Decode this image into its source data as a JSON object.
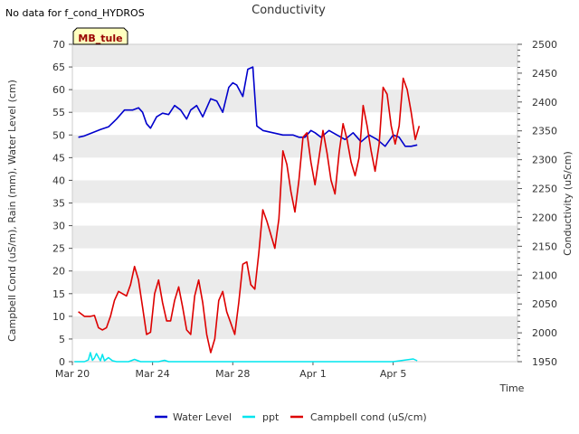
{
  "chart_data": {
    "type": "line",
    "title": "Conductivity",
    "top_note": "No data for f_cond_HYDROS",
    "badge": "MB_tule",
    "xlabel": "Time",
    "ylabel_left": "Campbell Cond (uS/m), Rain (mm), Water Level (cm)",
    "ylabel_right": "Conductivity (uS/cm)",
    "x_range_days": [
      0,
      22.2
    ],
    "x_ticks": [
      {
        "day": 0,
        "label": "Mar 20"
      },
      {
        "day": 4,
        "label": "Mar 24"
      },
      {
        "day": 8,
        "label": "Mar 28"
      },
      {
        "day": 12,
        "label": "Apr 1"
      },
      {
        "day": 16,
        "label": "Apr 5"
      }
    ],
    "ylim_left": [
      0,
      70
    ],
    "y_ticks_left": [
      "0",
      "5",
      "10",
      "15",
      "20",
      "25",
      "30",
      "35",
      "40",
      "45",
      "50",
      "55",
      "60",
      "65",
      "70"
    ],
    "ylim_right": [
      1950,
      2500
    ],
    "y_ticks_right": [
      "1950",
      "2000",
      "2050",
      "2100",
      "2150",
      "2200",
      "2250",
      "2300",
      "2350",
      "2400",
      "2450",
      "2500"
    ],
    "legend_placement": "bottom-center",
    "colors": {
      "water_level": "#0000cc",
      "ppt": "#00e5ee",
      "campbell": "#dd0000",
      "band": "#ebebeb"
    },
    "series": [
      {
        "name": "Water Level",
        "key": "water_level",
        "axis": "left",
        "x": [
          0.3,
          0.6,
          1.0,
          1.4,
          1.8,
          2.2,
          2.6,
          3.0,
          3.3,
          3.5,
          3.7,
          3.9,
          4.2,
          4.5,
          4.8,
          5.1,
          5.4,
          5.7,
          5.9,
          6.2,
          6.5,
          6.9,
          7.2,
          7.5,
          7.8,
          8.0,
          8.2,
          8.5,
          8.75,
          9.0,
          9.2,
          9.35,
          9.45,
          9.5,
          10.0,
          10.5,
          11.0,
          11.3,
          11.6,
          11.9,
          12.1,
          12.4,
          12.8,
          13.2,
          13.6,
          14.0,
          14.4,
          14.8,
          15.2,
          15.6,
          16.0,
          16.3,
          16.6,
          16.9,
          17.2
        ],
        "values": [
          49.5,
          49.8,
          50.5,
          51.2,
          51.8,
          53.5,
          55.5,
          55.5,
          56.0,
          55.0,
          52.5,
          51.5,
          54.0,
          54.8,
          54.5,
          56.5,
          55.5,
          53.5,
          55.5,
          56.5,
          54.0,
          58.0,
          57.5,
          55.0,
          60.5,
          61.5,
          61.0,
          58.5,
          64.5,
          65.0,
          52.0,
          51.5,
          51.2,
          51.0,
          50.5,
          50.0,
          50.0,
          49.5,
          49.5,
          51.0,
          50.5,
          49.5,
          51.0,
          50.0,
          49.0,
          50.5,
          48.5,
          50.0,
          49.0,
          47.5,
          50.0,
          49.5,
          47.5,
          47.5,
          47.8
        ]
      },
      {
        "name": "ppt",
        "key": "ppt",
        "axis": "left",
        "x": [
          0.1,
          0.6,
          0.8,
          0.9,
          1.0,
          1.1,
          1.2,
          1.4,
          1.5,
          1.6,
          1.8,
          2.0,
          2.2,
          2.5,
          2.8,
          3.1,
          3.4,
          3.7,
          4.3,
          4.6,
          4.8,
          5.2,
          6.0,
          8.0,
          10.0,
          12.0,
          14.0,
          16.0,
          17.0,
          17.1,
          17.2
        ],
        "values": [
          0,
          0,
          0.4,
          2.0,
          0.3,
          0.8,
          1.8,
          0.2,
          1.6,
          0.2,
          0.9,
          0.2,
          0,
          0,
          0,
          0.5,
          0,
          0,
          0,
          0.3,
          0,
          0,
          0,
          0,
          0,
          0,
          0,
          0,
          0.6,
          0.4,
          0.2
        ]
      },
      {
        "name": "Campbell cond (uS/cm)",
        "key": "campbell",
        "axis": "left",
        "x": [
          0.3,
          0.6,
          0.9,
          1.1,
          1.3,
          1.5,
          1.7,
          1.9,
          2.1,
          2.3,
          2.5,
          2.7,
          2.9,
          3.1,
          3.3,
          3.5,
          3.7,
          3.9,
          4.1,
          4.3,
          4.5,
          4.7,
          4.9,
          5.1,
          5.3,
          5.5,
          5.7,
          5.9,
          6.1,
          6.3,
          6.5,
          6.7,
          6.9,
          7.1,
          7.3,
          7.5,
          7.7,
          7.9,
          8.1,
          8.3,
          8.5,
          8.7,
          8.9,
          9.1,
          9.3,
          9.5,
          9.7,
          9.9,
          10.1,
          10.3,
          10.5,
          10.7,
          10.9,
          11.1,
          11.3,
          11.5,
          11.7,
          11.9,
          12.1,
          12.3,
          12.5,
          12.7,
          12.9,
          13.1,
          13.3,
          13.5,
          13.7,
          13.9,
          14.1,
          14.3,
          14.5,
          14.7,
          14.9,
          15.1,
          15.3,
          15.5,
          15.7,
          15.9,
          16.1,
          16.3,
          16.5,
          16.7,
          16.9,
          17.1,
          17.3
        ],
        "values": [
          11,
          10,
          10,
          10.2,
          7.5,
          7.0,
          7.5,
          10.0,
          13.5,
          15.5,
          15.0,
          14.5,
          17.0,
          21.0,
          18.0,
          12.0,
          6.0,
          6.5,
          15.0,
          18.0,
          13.0,
          9.0,
          9.0,
          13.5,
          16.5,
          12.0,
          7.0,
          6.0,
          14.5,
          18.0,
          13.0,
          6.0,
          2.0,
          5.0,
          13.5,
          15.5,
          11.0,
          8.5,
          6.0,
          13.0,
          21.5,
          22.0,
          17.0,
          16.0,
          24.0,
          33.5,
          31.0,
          28.0,
          25.0,
          31.5,
          46.5,
          43.5,
          37.5,
          33.0,
          40.0,
          49.5,
          50.5,
          44.0,
          39.0,
          45.0,
          51.0,
          46.0,
          40.0,
          37.0,
          46.0,
          52.5,
          49.0,
          44.0,
          41.0,
          45.0,
          56.5,
          52.0,
          46.5,
          42.0,
          48.0,
          60.5,
          59.0,
          52.0,
          48.0,
          52.0,
          62.5,
          60.0,
          55.0,
          49.0,
          52.0
        ]
      }
    ]
  }
}
